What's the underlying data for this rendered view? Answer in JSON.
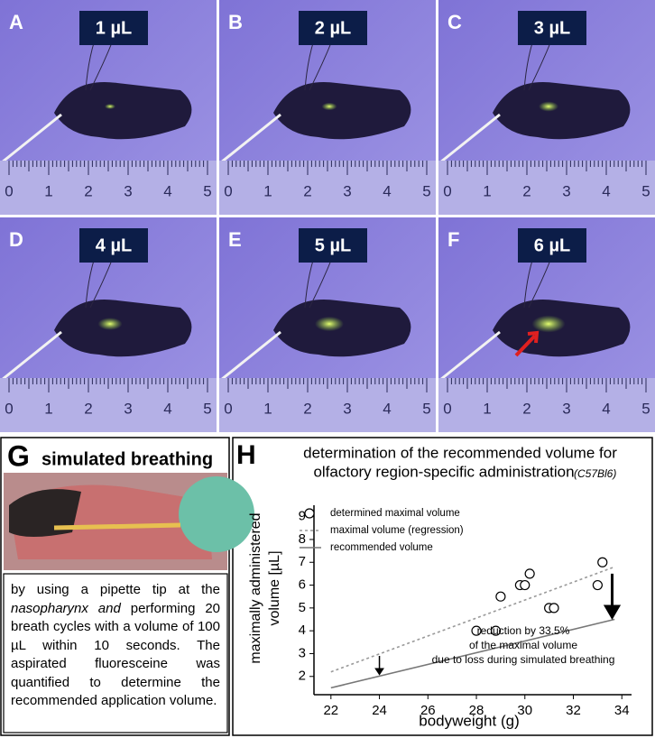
{
  "panels": [
    {
      "letter": "A",
      "volume": "1 µL"
    },
    {
      "letter": "B",
      "volume": "2 µL"
    },
    {
      "letter": "C",
      "volume": "3 µL"
    },
    {
      "letter": "D",
      "volume": "4 µL"
    },
    {
      "letter": "E",
      "volume": "5 µL"
    },
    {
      "letter": "F",
      "volume": "6 µL"
    }
  ],
  "ruler_labels": [
    "0",
    "1",
    "2",
    "3",
    "4",
    "5"
  ],
  "panel_g": {
    "letter": "G",
    "title": "simulated breathing",
    "text": [
      "by using a pipette tip at the ",
      "nasopharynx and",
      " performing 20 breath cycles with a volume of 100 µL within 10 seconds. The aspirated fluoresceine was quantified to determine the recommended application volume."
    ]
  },
  "chart_data": {
    "type": "scatter",
    "letter": "H",
    "title": [
      "determination of the recommended volume for",
      "olfactory region-specific administration"
    ],
    "title_note": "(C57Bl6)",
    "xlabel": "bodyweight (g)",
    "ylabel": [
      "maximally administered",
      "volume [µL]"
    ],
    "xlim": [
      21.3,
      34.4
    ],
    "ylim": [
      1.2,
      9.5
    ],
    "xticks": [
      22,
      24,
      26,
      28,
      30,
      32,
      34
    ],
    "yticks": [
      2,
      3,
      4,
      5,
      6,
      7,
      8,
      9
    ],
    "series": [
      {
        "name": "determined maximal volume",
        "color": "#000000",
        "style": "circle",
        "x": [
          28,
          28.8,
          29,
          29.8,
          30,
          30.2,
          31,
          31.2,
          33,
          33.2
        ],
        "values": [
          4,
          4,
          5.5,
          6,
          6,
          6.5,
          5,
          5,
          6,
          7
        ]
      },
      {
        "name": "maximal volume (regression)",
        "color": "#999999",
        "style": "dotted",
        "x": [
          22,
          33.7
        ],
        "values": [
          2.2,
          6.8
        ]
      },
      {
        "name": "recommended volume",
        "color": "#777777",
        "style": "solid",
        "x": [
          22,
          33.7
        ],
        "values": [
          1.5,
          4.5
        ]
      }
    ],
    "arrows": [
      {
        "x": 24,
        "from": 2.9,
        "to": 2.1
      },
      {
        "x": 33.6,
        "from": 6.5,
        "to": 4.6
      }
    ],
    "annotation": [
      "reduction by 33.5%",
      "of the maximal volume",
      "due to loss during simulated breathing"
    ]
  }
}
